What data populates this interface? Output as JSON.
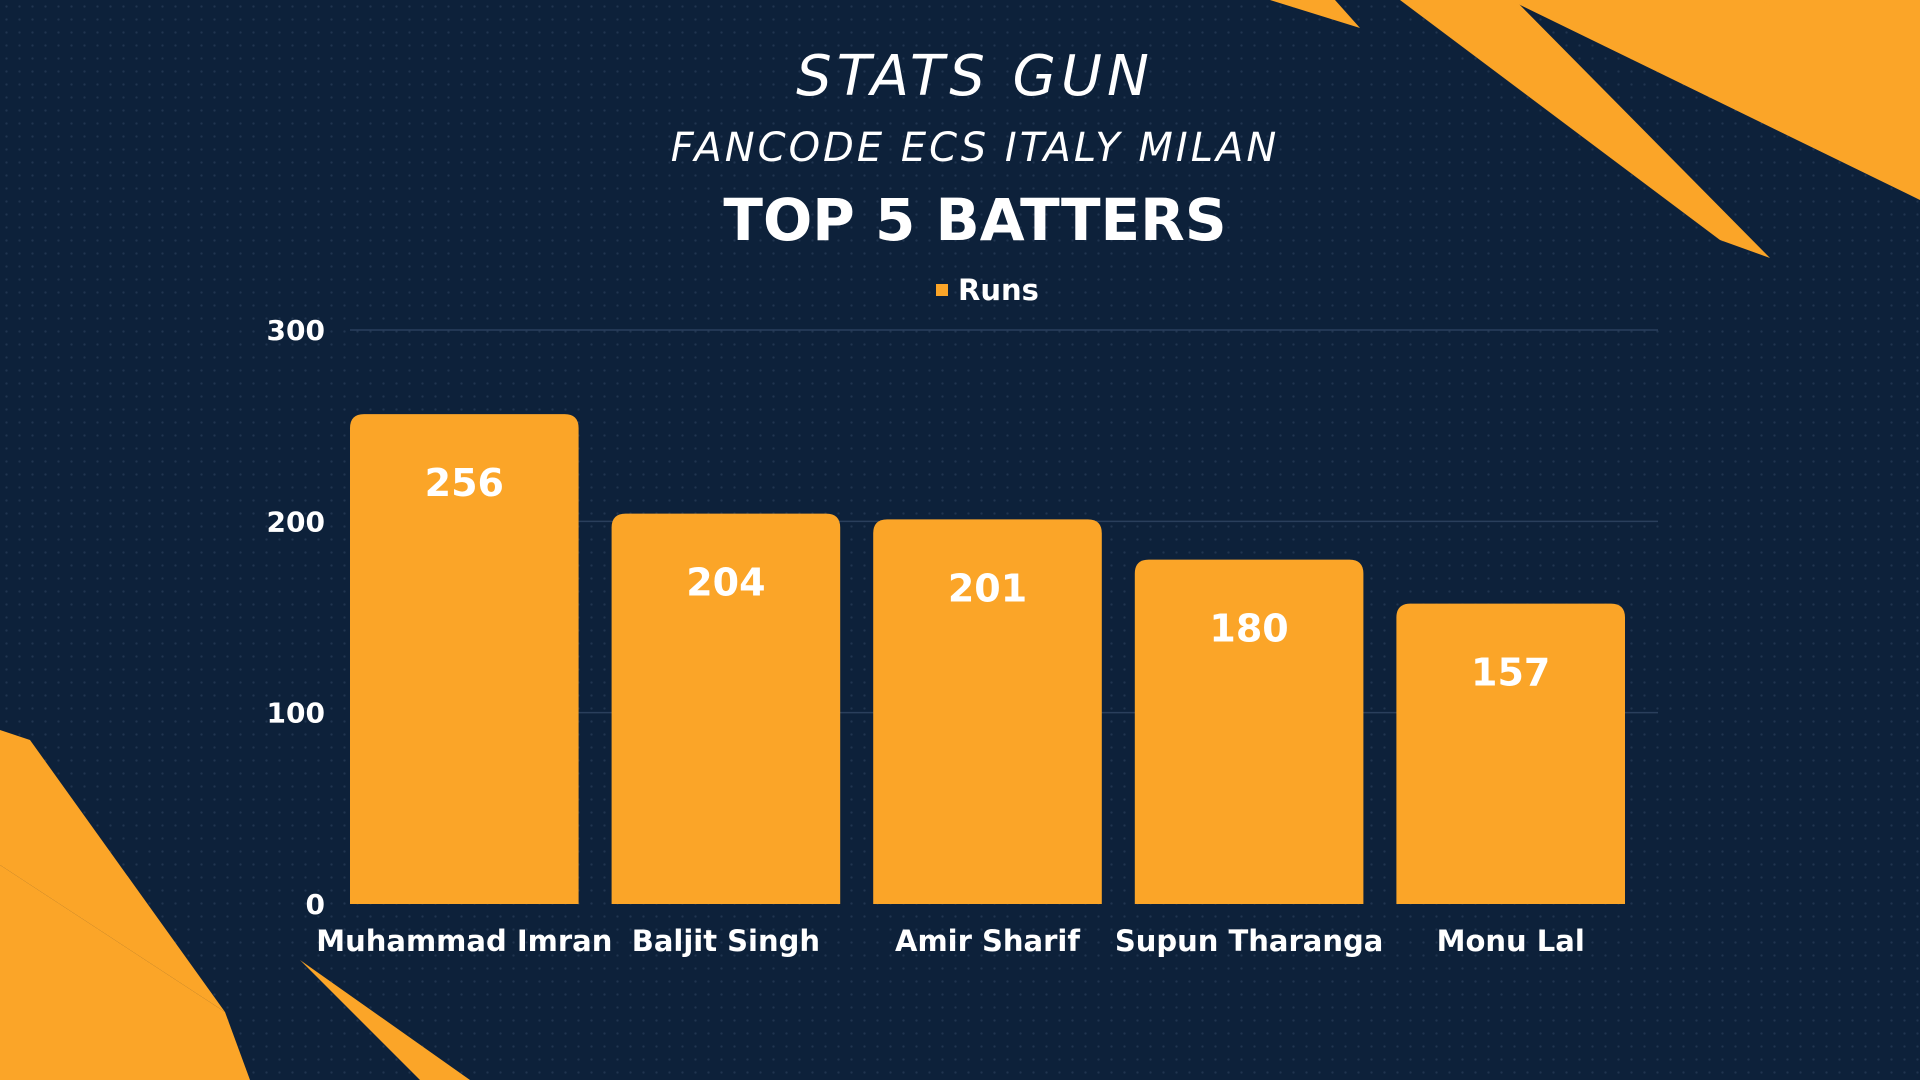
{
  "header": {
    "brand": "STATS GUN",
    "subtitle": "FANCODE ECS ITALY MILAN"
  },
  "colors": {
    "background": "#0d213a",
    "accent": "#fba528",
    "text": "#ffffff",
    "gridline": "#2a3f5c"
  },
  "chart_data": {
    "type": "bar",
    "title": "TOP 5 BATTERS",
    "categories": [
      "Muhammad Imran",
      "Baljit Singh",
      "Amir Sharif",
      "Supun Tharanga",
      "Monu Lal"
    ],
    "series": [
      {
        "name": "Runs",
        "values": [
          256,
          204,
          201,
          180,
          157
        ]
      }
    ],
    "ylim": [
      0,
      300
    ],
    "yticks": [
      0,
      100,
      200,
      300
    ],
    "grid": true,
    "legend": "top-center",
    "data_labels": true
  }
}
